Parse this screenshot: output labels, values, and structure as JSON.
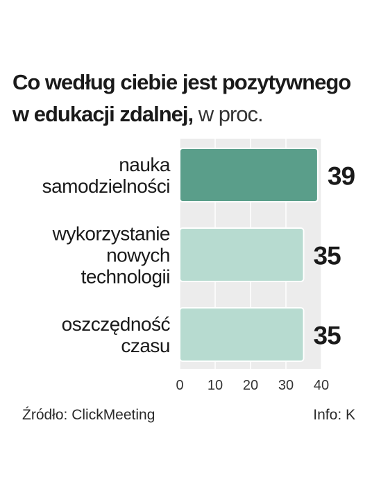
{
  "title_bold": "Co według ciebie jest pozytywnego w edukacji zdalnej,",
  "title_unit": "w proc.",
  "source": "Źródło: ClickMeeting",
  "credit": "Info: K",
  "colors": {
    "highlight_bar": "#5a9e8a",
    "bar": "#b7dbd0",
    "plot_background": "#ececec",
    "grid": "#ffffff"
  },
  "chart_data": {
    "type": "bar",
    "orientation": "horizontal",
    "categories": [
      [
        "nauka",
        "samodzielności"
      ],
      [
        "wykorzystanie",
        "nowych",
        "technologii"
      ],
      [
        "oszczędność",
        "czasu"
      ]
    ],
    "values": [
      39,
      35,
      35
    ],
    "value_labels": [
      "39",
      "35",
      "35"
    ],
    "highlighted_index": 0,
    "xlim": [
      0,
      40
    ],
    "x_ticks": [
      "0",
      "10",
      "20",
      "30",
      "40"
    ],
    "grid": true
  }
}
